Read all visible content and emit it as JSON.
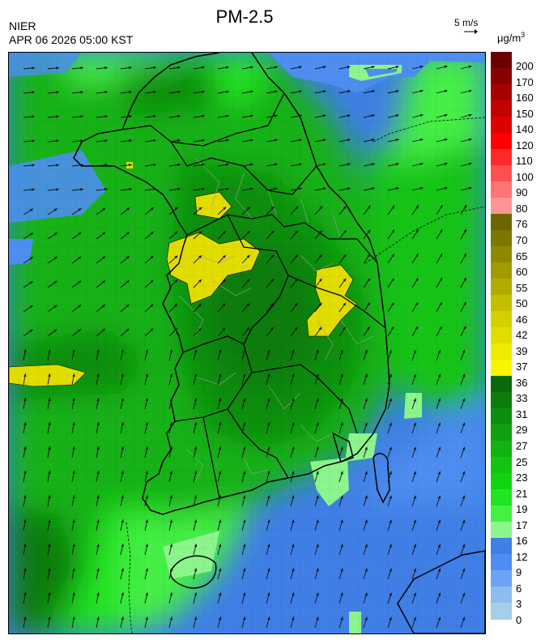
{
  "header": {
    "title": "PM-2.5",
    "agency": "NIER",
    "datetime": "APR 06 2026 05:00 KST",
    "wind_scale": "5 m/s",
    "unit_base": "μg/m",
    "unit_exp": "3"
  },
  "legend": {
    "labels": [
      "200",
      "170",
      "160",
      "150",
      "140",
      "120",
      "110",
      "100",
      "90",
      "80",
      "76",
      "70",
      "65",
      "60",
      "55",
      "50",
      "46",
      "42",
      "39",
      "37",
      "36",
      "33",
      "31",
      "29",
      "27",
      "25",
      "23",
      "21",
      "19",
      "17",
      "16",
      "12",
      "9",
      "6",
      "3",
      "0"
    ],
    "colors": [
      "#6a0000",
      "#8a0000",
      "#a80000",
      "#c40000",
      "#e00000",
      "#ff0000",
      "#ff2a2a",
      "#ff5050",
      "#ff7474",
      "#ff9494",
      "#6b6600",
      "#7d7700",
      "#8f8900",
      "#a09b00",
      "#b2ac00",
      "#c4be00",
      "#d4cf00",
      "#e2dd00",
      "#eeea00",
      "#fbf400",
      "#0a6a0a",
      "#0c7c0c",
      "#0e8e0e",
      "#11a011",
      "#12b212",
      "#13c413",
      "#11d411",
      "#22e422",
      "#44f044",
      "#8cf58c",
      "#3f7fe6",
      "#4d8ef0",
      "#6aa4f2",
      "#8dbcef",
      "#a7cde8"
    ]
  }
}
